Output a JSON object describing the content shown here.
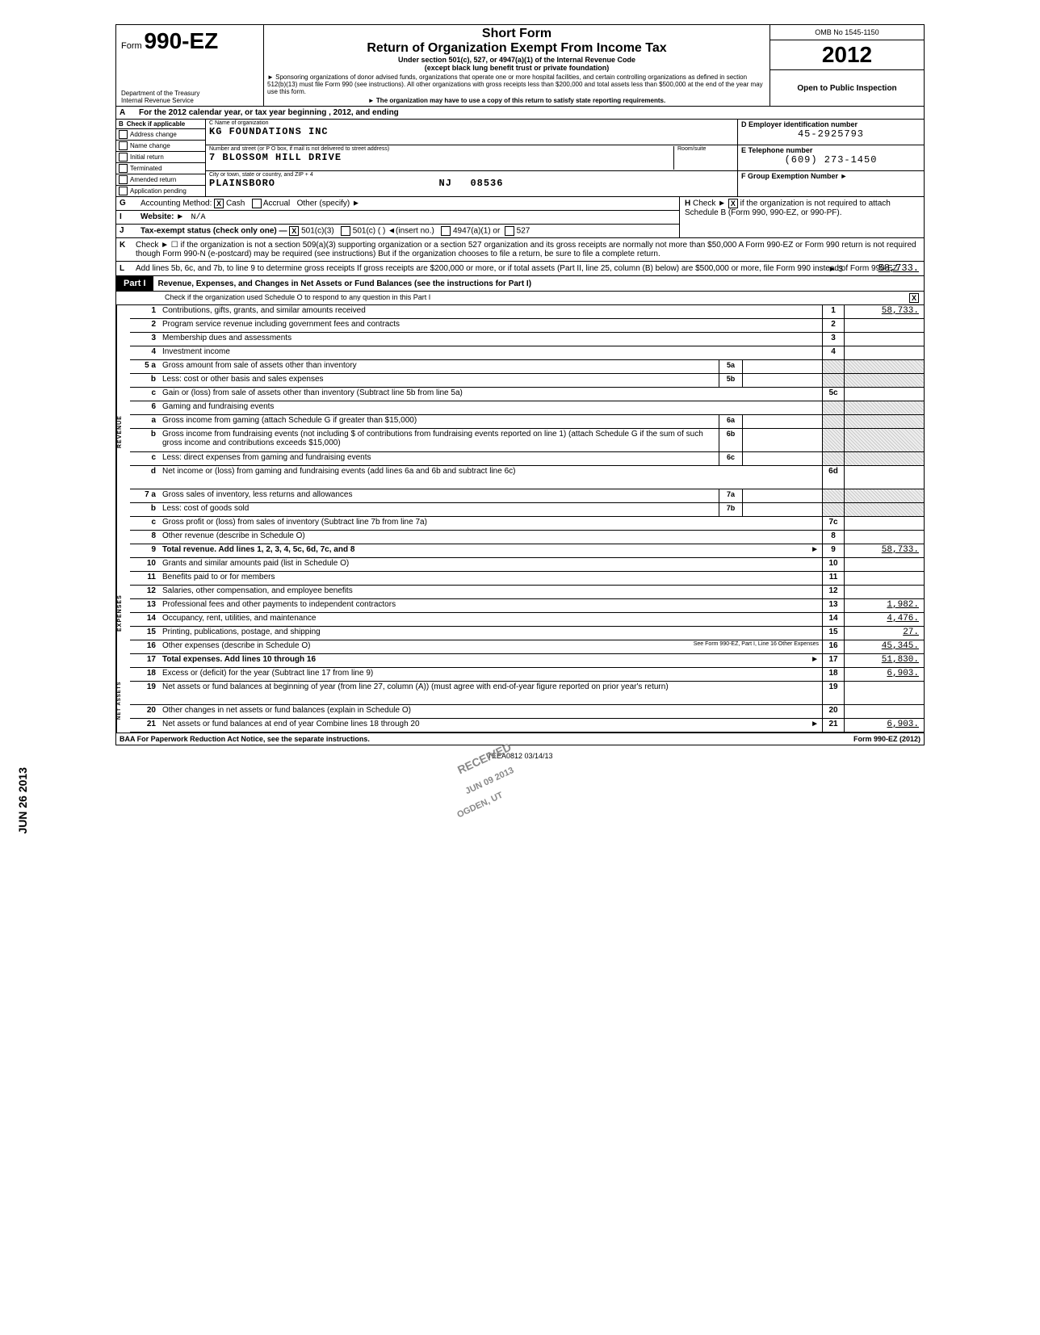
{
  "header": {
    "form_prefix": "Form",
    "form_number": "990-EZ",
    "title_short": "Short Form",
    "title_main": "Return of Organization Exempt From Income Tax",
    "subtitle1": "Under section 501(c), 527, or 4947(a)(1) of the Internal Revenue Code",
    "subtitle2": "(except black lung benefit trust or private foundation)",
    "note1": "► Sponsoring organizations of donor advised funds, organizations that operate one or more hospital facilities, and certain controlling organizations as defined in section 512(b)(13) must file Form 990 (see instructions). All other organizations with gross receipts less than $200,000 and total assets less than $500,000 at the end of the year may use this form.",
    "note2": "► The organization may have to use a copy of this return to satisfy state reporting requirements.",
    "dept": "Department of the Treasury",
    "irs": "Internal Revenue Service",
    "omb": "OMB No 1545-1150",
    "year": "2012",
    "open": "Open to Public Inspection"
  },
  "line_a": "For the 2012 calendar year, or tax year beginning                                          , 2012, and ending",
  "section_b": {
    "header": "Check if applicable",
    "checks": [
      "Address change",
      "Name change",
      "Initial return",
      "Terminated",
      "Amended return",
      "Application pending"
    ],
    "c_label": "C  Name of organization",
    "org_name": "KG FOUNDATIONS INC",
    "street_label": "Number and street (or P O  box, if mail is not delivered to street address)",
    "room_label": "Room/suite",
    "street": "7 BLOSSOM HILL DRIVE",
    "city_label": "City or town, state or country, and ZIP + 4",
    "city": "PLAINSBORO",
    "state": "NJ",
    "zip": "08536",
    "d_label": "D  Employer identification number",
    "ein": "45-2925793",
    "e_label": "E  Telephone number",
    "phone": "(609) 273-1450",
    "f_label": "F  Group Exemption Number  ►"
  },
  "line_g": {
    "label": "Accounting Method:",
    "cash": "Cash",
    "accrual": "Accrual",
    "other": "Other (specify) ►",
    "cash_checked": "X"
  },
  "line_h": {
    "text": "Check ►",
    "x": "X",
    "rest": "if the organization is not required to attach Schedule B (Form 990, 990-EZ, or 990-PF)."
  },
  "line_i": {
    "label": "Website: ►",
    "val": "N/A"
  },
  "line_j": {
    "label": "Tax-exempt status (check only one) —",
    "c3": "501(c)(3)",
    "c": "501(c) (        ) ◄(insert no.)",
    "a1": "4947(a)(1) or",
    "s527": "527",
    "c3_checked": "X"
  },
  "line_k": {
    "text": "Check ► ☐  if the organization is not a section 509(a)(3) supporting organization or a section 527 organization and its gross receipts are normally not more than $50,000  A Form 990-EZ or Form 990 return is not required though Form 990-N (e-postcard) may be required (see instructions)  But if the organization chooses to file a return, be sure to file a complete return."
  },
  "line_l": {
    "text": "Add lines 5b, 6c, and 7b, to line 9 to determine gross receipts  If gross receipts are $200,000 or more, or if total assets (Part II, line 25, column (B) below) are $500,000 or more, file Form 990 instead of Form 990-EZ",
    "arrow": "► $",
    "amount": "58,733."
  },
  "part1": {
    "label": "Part I",
    "title": "Revenue, Expenses, and Changes in Net Assets or Fund Balances (see the instructions for Part I)",
    "sub": "Check if the organization used Schedule O to respond to any question in this Part I",
    "sub_checked": "X"
  },
  "rows": [
    {
      "n": "1",
      "d": "Contributions, gifts, grants, and similar amounts received",
      "rn": "1",
      "amt": "58,733."
    },
    {
      "n": "2",
      "d": "Program service revenue including government fees and contracts",
      "rn": "2",
      "amt": ""
    },
    {
      "n": "3",
      "d": "Membership dues and assessments",
      "rn": "3",
      "amt": ""
    },
    {
      "n": "4",
      "d": "Investment income",
      "rn": "4",
      "amt": ""
    },
    {
      "n": "5 a",
      "d": "Gross amount from sale of assets other than inventory",
      "mid_n": "5a",
      "mid_v": "",
      "rn": "",
      "amt": "",
      "shaded": true
    },
    {
      "n": "b",
      "d": "Less: cost or other basis and sales expenses",
      "mid_n": "5b",
      "mid_v": "",
      "rn": "",
      "amt": "",
      "shaded": true
    },
    {
      "n": "c",
      "d": "Gain or (loss) from sale of assets other than inventory (Subtract line 5b from line 5a)",
      "rn": "5c",
      "amt": ""
    },
    {
      "n": "6",
      "d": "Gaming and fundraising events",
      "rn": "",
      "amt": "",
      "shaded": true
    },
    {
      "n": "a",
      "d": "Gross income from gaming (attach Schedule G if greater than $15,000)",
      "mid_n": "6a",
      "mid_v": "",
      "rn": "",
      "amt": "",
      "shaded": true
    },
    {
      "n": "b",
      "d": "Gross income from fundraising events (not including  $                            of contributions from fundraising events reported on line 1) (attach Schedule G if the sum of such gross income and contributions exceeds $15,000)",
      "mid_n": "6b",
      "mid_v": "",
      "rn": "",
      "amt": "",
      "shaded": true,
      "tall": true
    },
    {
      "n": "c",
      "d": "Less: direct expenses from gaming and fundraising events",
      "mid_n": "6c",
      "mid_v": "",
      "rn": "",
      "amt": "",
      "shaded": true
    },
    {
      "n": "d",
      "d": "Net income or (loss) from gaming and fundraising events (add lines 6a and 6b and subtract line 6c)",
      "rn": "6d",
      "amt": "",
      "tall": true
    },
    {
      "n": "7 a",
      "d": "Gross sales of inventory, less returns and allowances",
      "mid_n": "7a",
      "mid_v": "",
      "rn": "",
      "amt": "",
      "shaded": true
    },
    {
      "n": "b",
      "d": "Less: cost of goods sold",
      "mid_n": "7b",
      "mid_v": "",
      "rn": "",
      "amt": "",
      "shaded": true
    },
    {
      "n": "c",
      "d": "Gross profit or (loss) from sales of inventory (Subtract line 7b from line 7a)",
      "rn": "7c",
      "amt": ""
    },
    {
      "n": "8",
      "d": "Other revenue (describe in Schedule O)",
      "rn": "8",
      "amt": ""
    },
    {
      "n": "9",
      "d": "Total revenue. Add lines 1, 2, 3, 4, 5c, 6d, 7c, and 8",
      "rn": "9",
      "amt": "58,733.",
      "bold": true,
      "arrow": true
    }
  ],
  "exp_rows": [
    {
      "n": "10",
      "d": "Grants and similar amounts paid (list in Schedule O)",
      "rn": "10",
      "amt": ""
    },
    {
      "n": "11",
      "d": "Benefits paid to or for members",
      "rn": "11",
      "amt": ""
    },
    {
      "n": "12",
      "d": "Salaries, other compensation, and employee benefits",
      "rn": "12",
      "amt": ""
    },
    {
      "n": "13",
      "d": "Professional fees and other payments to independent contractors",
      "rn": "13",
      "amt": "1,982."
    },
    {
      "n": "14",
      "d": "Occupancy, rent, utilities, and maintenance",
      "rn": "14",
      "amt": "4,476."
    },
    {
      "n": "15",
      "d": "Printing, publications, postage, and shipping",
      "rn": "15",
      "amt": "27."
    },
    {
      "n": "16",
      "d": "Other expenses (describe in Schedule O)",
      "rn": "16",
      "amt": "45,345.",
      "note": "See Form 990-EZ, Part I, Line 16 Other Expenses"
    },
    {
      "n": "17",
      "d": "Total expenses. Add lines 10 through 16",
      "rn": "17",
      "amt": "51,830.",
      "bold": true,
      "arrow": true
    }
  ],
  "net_rows": [
    {
      "n": "18",
      "d": "Excess or (deficit) for the year (Subtract line 17 from line 9)",
      "rn": "18",
      "amt": "6,903."
    },
    {
      "n": "19",
      "d": "Net assets or fund balances at beginning of year (from line 27, column (A)) (must agree with end-of-year figure reported on prior year's return)",
      "rn": "19",
      "amt": "",
      "tall": true
    },
    {
      "n": "20",
      "d": "Other changes in net assets or fund balances (explain in Schedule O)",
      "rn": "20",
      "amt": ""
    },
    {
      "n": "21",
      "d": "Net assets or fund balances at end of year  Combine lines 18 through 20",
      "rn": "21",
      "amt": "6,903.",
      "arrow": true
    }
  ],
  "side_labels": {
    "revenue": "REVENUE",
    "expenses": "EXPENSES",
    "net": "NET ASSETS"
  },
  "footer": {
    "baa": "BAA  For Paperwork Reduction Act Notice, see the separate instructions.",
    "form": "Form 990-EZ (2012)",
    "teea": "TEEA0812   03/14/13"
  },
  "stamps": {
    "received": "RECEIVED",
    "date": "JUN 09 2013",
    "ogden": "OGDEN, UT",
    "side_date": "JUN 26 2013"
  }
}
